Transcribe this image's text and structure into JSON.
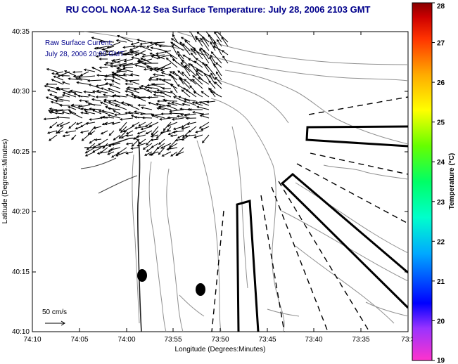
{
  "title": "RU COOL  NOAA-12  Sea Surface Temperature:  July 28, 2006 2103 GMT",
  "legend_line1": "Raw Surface Current:",
  "legend_line2": "July 28, 2006 20:00 GMT",
  "scale_label": "50 cm/s",
  "xlabel": "Longitude (Degrees:Minutes)",
  "ylabel": "Latitude (Degrees:Minutes)",
  "colorbar_label": "Temperature (°C)",
  "x_ticks": [
    "74:10",
    "74:05",
    "74:00",
    "73:55",
    "73:50",
    "73:45",
    "73:40",
    "73:35",
    "73:3"
  ],
  "y_ticks": [
    "40:35",
    "40:30",
    "40:25",
    "40:20",
    "40:15",
    "40:10"
  ],
  "colorbar_ticks": [
    "28",
    "27",
    "26",
    "25",
    "24",
    "23",
    "22",
    "21",
    "20",
    "19"
  ],
  "colors": {
    "title": "#00008b",
    "legend_text": "#00008b",
    "colorbar": [
      "#ff33cc",
      "#9933ff",
      "#0000ff",
      "#00aaff",
      "#00ffcc",
      "#00ff66",
      "#66ff00",
      "#ffff00",
      "#ffaa00",
      "#ff3300",
      "#cc0000",
      "#880000"
    ]
  }
}
